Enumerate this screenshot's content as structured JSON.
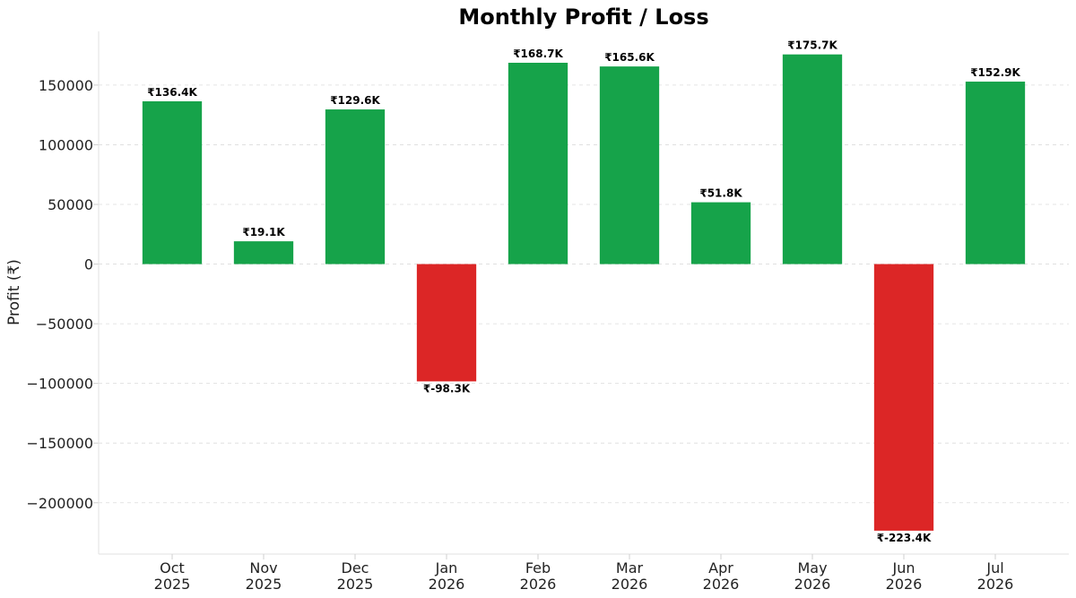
{
  "chart_data": {
    "type": "bar",
    "title": "Monthly Profit / Loss",
    "xlabel": "",
    "ylabel": "Profit (₹)",
    "categories": [
      [
        "Oct",
        "2025"
      ],
      [
        "Nov",
        "2025"
      ],
      [
        "Dec",
        "2025"
      ],
      [
        "Jan",
        "2026"
      ],
      [
        "Feb",
        "2026"
      ],
      [
        "Mar",
        "2026"
      ],
      [
        "Apr",
        "2026"
      ],
      [
        "May",
        "2026"
      ],
      [
        "Jun",
        "2026"
      ],
      [
        "Jul",
        "2026"
      ]
    ],
    "values": [
      136400,
      19100,
      129600,
      -98300,
      168700,
      165600,
      51800,
      175700,
      -223400,
      152900
    ],
    "data_labels": [
      "₹136.4K",
      "₹19.1K",
      "₹129.6K",
      "₹-98.3K",
      "₹168.7K",
      "₹165.6K",
      "₹51.8K",
      "₹175.7K",
      "₹-223.4K",
      "₹152.9K"
    ],
    "ylim": [
      -243000,
      195000
    ],
    "yticks": [
      150000,
      100000,
      50000,
      0,
      -50000,
      -100000,
      -150000,
      -200000
    ],
    "ytick_labels": [
      "150000",
      "100000",
      "50000",
      "0",
      "−50000",
      "−100000",
      "−150000",
      "−200000"
    ],
    "grid": true,
    "colors": {
      "positive": "#16a34a",
      "negative": "#dc2626"
    }
  }
}
